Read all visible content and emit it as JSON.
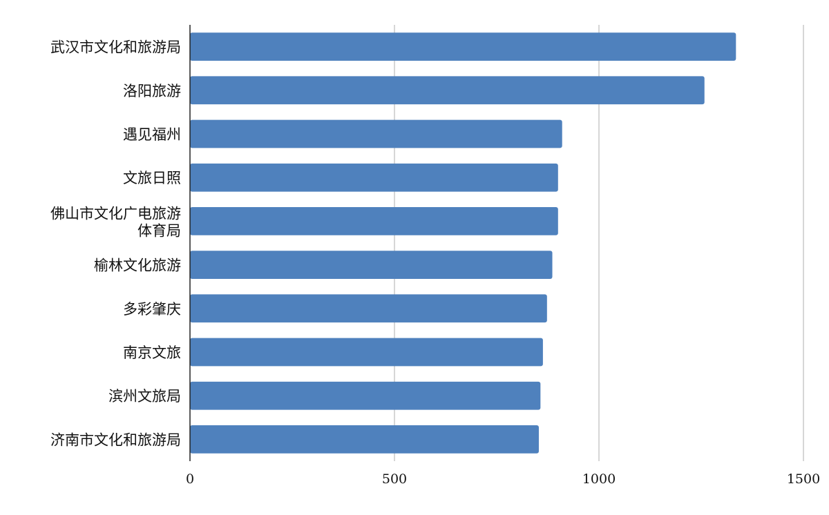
{
  "chart_data": {
    "type": "bar",
    "orientation": "horizontal",
    "categories": [
      "武汉市文化和旅游局",
      "洛阳旅游",
      "遇见福州",
      "文旅日照",
      "佛山市文化广电旅游体育局",
      "榆林文化旅游",
      "多彩肇庆",
      "南京文旅",
      "滨州文旅局",
      "济南市文化和旅游局"
    ],
    "values": [
      1335,
      1258,
      910,
      900,
      900,
      886,
      873,
      863,
      857,
      853
    ],
    "xlim": [
      0,
      1500
    ],
    "x_ticks": [
      "0",
      "500",
      "1000",
      "1500"
    ],
    "title": "",
    "xlabel": "",
    "ylabel": "",
    "grid": "vertical",
    "legend": "none",
    "bar_color": "#4f81bd"
  }
}
